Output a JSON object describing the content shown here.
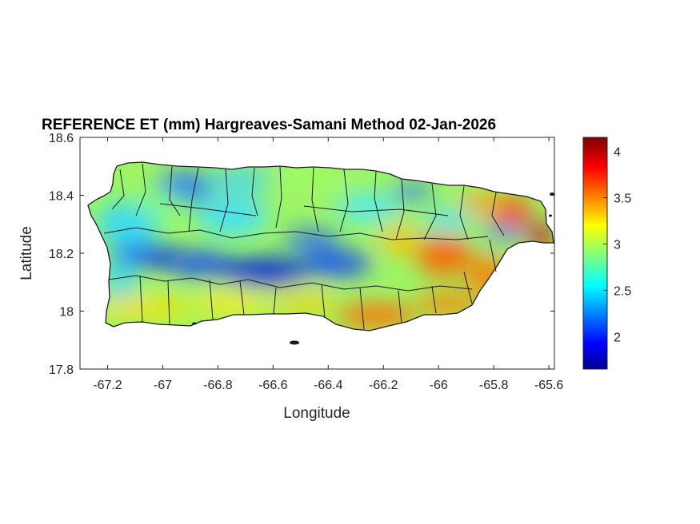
{
  "figure": {
    "title": "REFERENCE ET (mm) Hargreaves-Samani Method  02-Jan-2026",
    "xlabel": "Longitude",
    "ylabel": "Latitude"
  },
  "chart_data": {
    "type": "heatmap",
    "title": "REFERENCE ET (mm) Hargreaves-Samani Method  02-Jan-2026",
    "xlabel": "Longitude",
    "ylabel": "Latitude",
    "xlim": [
      -67.3,
      -65.58
    ],
    "ylim": [
      17.8,
      18.6
    ],
    "x_ticks": [
      -67.2,
      -67,
      -66.8,
      -66.6,
      -66.4,
      -66.2,
      -66,
      -65.8,
      -65.6
    ],
    "x_tick_labels": [
      "-67.2",
      "-67",
      "-66.8",
      "-66.6",
      "-66.4",
      "-66.2",
      "-66",
      "-65.8",
      "-65.6"
    ],
    "y_ticks": [
      17.8,
      18,
      18.2,
      18.4,
      18.6
    ],
    "y_tick_labels": [
      "17.8",
      "18",
      "18.2",
      "18.4",
      "18.6"
    ],
    "colormap": "jet",
    "colorbar": {
      "range": [
        1.65,
        4.15
      ],
      "ticks": [
        2,
        2.5,
        3,
        3.5,
        4
      ],
      "tick_labels": [
        "2",
        "2.5",
        "3",
        "3.5",
        "4"
      ]
    },
    "colors": {
      "low": "#00008f",
      "mid": "#7fff7f",
      "high": "#800000",
      "border": "#1a1a1a"
    }
  }
}
